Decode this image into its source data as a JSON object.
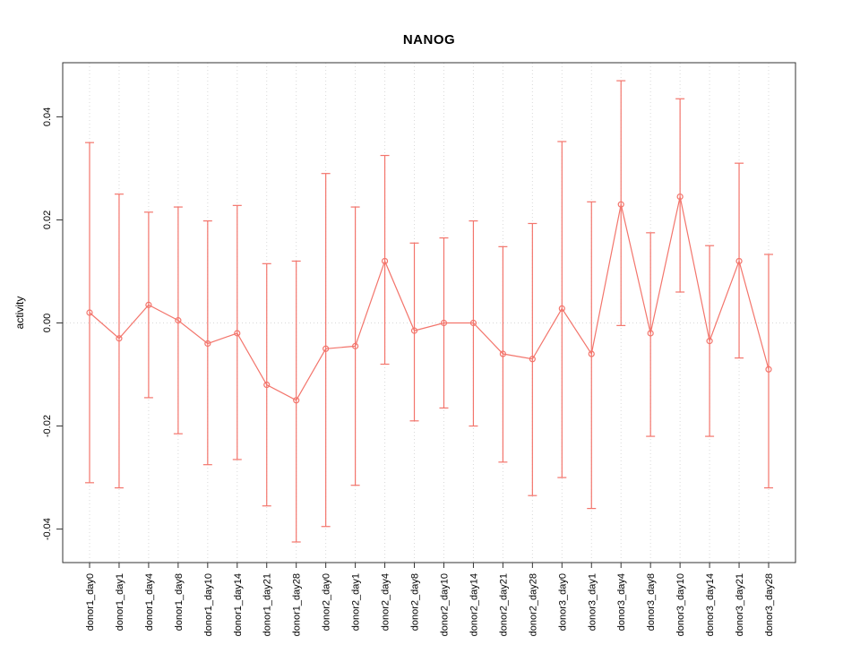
{
  "page": {
    "background": "#FFFFFF"
  },
  "chart_data": {
    "type": "line",
    "title": "NANOG",
    "xlabel": "",
    "ylabel": "activity",
    "ylim": [
      -0.0465,
      0.0505
    ],
    "yticks": [
      -0.04,
      -0.02,
      0,
      0.02,
      0.04
    ],
    "legend": "none",
    "grid": {
      "vertical_dotted_per_category": true,
      "dotted_zero_line": true
    },
    "point_style": "open-circle",
    "error_bars": true,
    "series_color": "#F3756C",
    "grid_color": "#D9D9D9",
    "axis_color": "#333333",
    "categories": [
      "donor1_day0",
      "donor1_day1",
      "donor1_day4",
      "donor1_day8",
      "donor1_day10",
      "donor1_day14",
      "donor1_day21",
      "donor1_day28",
      "donor2_day0",
      "donor2_day1",
      "donor2_day4",
      "donor2_day8",
      "donor2_day10",
      "donor2_day14",
      "donor2_day21",
      "donor2_day28",
      "donor3_day0",
      "donor3_day1",
      "donor3_day4",
      "donor3_day8",
      "donor3_day10",
      "donor3_day14",
      "donor3_day21",
      "donor3_day28"
    ],
    "series": [
      {
        "name": "NANOG activity",
        "values": [
          0.002,
          -0.003,
          0.0035,
          0.0005,
          -0.004,
          -0.002,
          -0.012,
          -0.015,
          -0.005,
          -0.0045,
          0.012,
          -0.0015,
          0.0,
          0.0,
          -0.006,
          -0.007,
          0.0028,
          -0.006,
          0.023,
          -0.002,
          0.0245,
          -0.0035,
          0.012,
          -0.009
        ],
        "upper": [
          0.035,
          0.025,
          0.0215,
          0.0225,
          0.0198,
          0.0228,
          0.0115,
          0.012,
          0.029,
          0.0225,
          0.0325,
          0.0155,
          0.0165,
          0.0198,
          0.0148,
          0.0193,
          0.0352,
          0.0235,
          0.047,
          0.0175,
          0.0435,
          0.015,
          0.031,
          0.0133
        ],
        "lower": [
          -0.031,
          -0.032,
          -0.0145,
          -0.0215,
          -0.0275,
          -0.0265,
          -0.0355,
          -0.0425,
          -0.0395,
          -0.0315,
          -0.008,
          -0.019,
          -0.0165,
          -0.02,
          -0.027,
          -0.0335,
          -0.03,
          -0.036,
          -0.0005,
          -0.022,
          0.006,
          -0.022,
          -0.0068,
          -0.032
        ]
      }
    ]
  }
}
